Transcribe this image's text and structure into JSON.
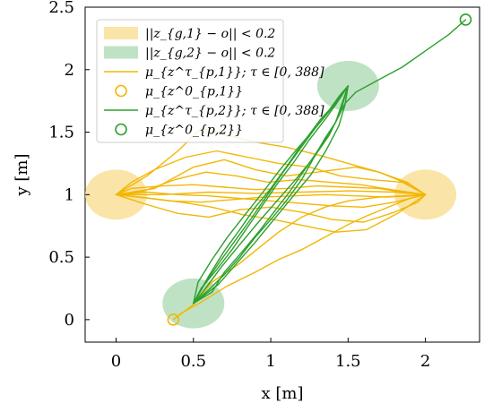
{
  "chart_data": {
    "type": "line",
    "title": "",
    "xlabel": "x [m]",
    "ylabel": "y [m]",
    "xlim": [
      -0.2,
      2.35
    ],
    "ylim": [
      -0.18,
      2.5
    ],
    "xticks": [
      0,
      0.5,
      1,
      1.5,
      2
    ],
    "xtick_labels": [
      "0",
      "0.5",
      "1",
      "1.5",
      "2"
    ],
    "yticks": [
      0,
      0.5,
      1,
      1.5,
      2,
      2.5
    ],
    "ytick_labels": [
      "0",
      "0.5",
      "1",
      "1.5",
      "2",
      "2.5"
    ],
    "grid": false,
    "legend_position": "top-left",
    "regions": [
      {
        "name": "||z_{g,1} − o|| < 0.2",
        "color": "#fbe4a8",
        "centers": [
          [
            0,
            1
          ],
          [
            2,
            1
          ]
        ],
        "radius": 0.2
      },
      {
        "name": "||z_{g,2} − o|| < 0.2",
        "color": "#bfe2c4",
        "centers": [
          [
            0.5,
            0.13
          ],
          [
            1.5,
            1.87
          ]
        ],
        "radius": 0.2
      }
    ],
    "series": [
      {
        "name": "μ_{z^τ_{p,1}}; τ ∈ [0, 388]",
        "color": "#f2b705",
        "start": [
          0.37,
          0
        ],
        "paths": [
          [
            [
              0.37,
              0
            ],
            [
              0.42,
              0.05
            ],
            [
              0.55,
              0.14
            ],
            [
              0.72,
              0.27
            ],
            [
              0.9,
              0.38
            ],
            [
              1.05,
              0.48
            ],
            [
              1.2,
              0.56
            ],
            [
              1.35,
              0.66
            ],
            [
              1.5,
              0.76
            ],
            [
              1.62,
              0.83
            ],
            [
              1.78,
              0.91
            ],
            [
              1.9,
              0.97
            ],
            [
              2,
              1
            ]
          ],
          [
            [
              2,
              1
            ],
            [
              1.85,
              1.02
            ],
            [
              1.7,
              1.05
            ],
            [
              1.5,
              1.06
            ],
            [
              1.3,
              1.07
            ],
            [
              1.1,
              1.05
            ],
            [
              0.9,
              1.04
            ],
            [
              0.7,
              1.06
            ],
            [
              0.5,
              1.08
            ],
            [
              0.3,
              1.07
            ],
            [
              0.1,
              1.05
            ],
            [
              0,
              1
            ]
          ],
          [
            [
              0,
              1
            ],
            [
              0.15,
              0.98
            ],
            [
              0.35,
              0.95
            ],
            [
              0.55,
              0.94
            ],
            [
              0.75,
              0.96
            ],
            [
              0.95,
              0.98
            ],
            [
              1.15,
              0.99
            ],
            [
              1.35,
              1.0
            ],
            [
              1.55,
              0.99
            ],
            [
              1.75,
              0.98
            ],
            [
              1.92,
              0.99
            ],
            [
              2,
              1
            ]
          ],
          [
            [
              2,
              1
            ],
            [
              1.85,
              1.1
            ],
            [
              1.65,
              1.12
            ],
            [
              1.45,
              1.15
            ],
            [
              1.25,
              1.22
            ],
            [
              1.05,
              1.25
            ],
            [
              0.85,
              1.3
            ],
            [
              0.65,
              1.35
            ],
            [
              0.45,
              1.3
            ],
            [
              0.25,
              1.2
            ],
            [
              0.1,
              1.1
            ],
            [
              0,
              1
            ]
          ],
          [
            [
              0,
              1
            ],
            [
              0.2,
              0.92
            ],
            [
              0.4,
              0.85
            ],
            [
              0.6,
              0.82
            ],
            [
              0.8,
              0.88
            ],
            [
              1.0,
              0.9
            ],
            [
              1.2,
              0.86
            ],
            [
              1.4,
              0.8
            ],
            [
              1.6,
              0.78
            ],
            [
              1.8,
              0.86
            ],
            [
              1.95,
              0.94
            ],
            [
              2,
              1
            ]
          ],
          [
            [
              2,
              1
            ],
            [
              1.9,
              1.08
            ],
            [
              1.7,
              1.18
            ],
            [
              1.5,
              1.25
            ],
            [
              1.3,
              1.32
            ],
            [
              1.1,
              1.38
            ],
            [
              0.9,
              1.42
            ],
            [
              0.7,
              1.48
            ],
            [
              0.55,
              1.53
            ],
            [
              0.4,
              1.35
            ],
            [
              0.2,
              1.15
            ],
            [
              0,
              1
            ]
          ],
          [
            [
              0,
              1
            ],
            [
              0.18,
              1.03
            ],
            [
              0.38,
              1.12
            ],
            [
              0.58,
              1.18
            ],
            [
              0.78,
              1.15
            ],
            [
              0.98,
              1.1
            ],
            [
              1.18,
              1.12
            ],
            [
              1.38,
              1.1
            ],
            [
              1.58,
              1.08
            ],
            [
              1.78,
              1.04
            ],
            [
              2,
              1
            ]
          ],
          [
            [
              2,
              1
            ],
            [
              1.8,
              0.94
            ],
            [
              1.6,
              0.9
            ],
            [
              1.4,
              0.91
            ],
            [
              1.2,
              0.93
            ],
            [
              1.0,
              0.95
            ],
            [
              0.8,
              0.97
            ],
            [
              0.6,
              0.99
            ],
            [
              0.4,
              1.0
            ],
            [
              0.2,
              1.02
            ],
            [
              0,
              1
            ]
          ],
          [
            [
              0,
              1
            ],
            [
              0.25,
              1.05
            ],
            [
              0.5,
              1.22
            ],
            [
              0.7,
              1.28
            ],
            [
              0.9,
              1.2
            ],
            [
              1.1,
              1.15
            ],
            [
              1.3,
              1.18
            ],
            [
              1.55,
              1.22
            ],
            [
              1.7,
              1.18
            ],
            [
              1.88,
              1.1
            ],
            [
              2,
              1
            ]
          ],
          [
            [
              2,
              1
            ],
            [
              1.82,
              0.85
            ],
            [
              1.62,
              0.72
            ],
            [
              1.42,
              0.7
            ],
            [
              1.22,
              0.75
            ],
            [
              1.02,
              0.8
            ],
            [
              0.82,
              0.84
            ],
            [
              0.62,
              0.9
            ],
            [
              0.42,
              0.94
            ],
            [
              0.22,
              0.97
            ],
            [
              0,
              1
            ]
          ],
          [
            [
              0,
              1
            ],
            [
              0.3,
              1.0
            ],
            [
              0.6,
              1.02
            ],
            [
              0.9,
              1.01
            ],
            [
              1.2,
              1.02
            ],
            [
              1.5,
              1.03
            ],
            [
              1.8,
              1.02
            ],
            [
              2,
              1
            ]
          ],
          [
            [
              0.37,
              0
            ],
            [
              0.5,
              0.12
            ],
            [
              0.62,
              0.3
            ],
            [
              0.8,
              0.45
            ],
            [
              0.95,
              0.6
            ],
            [
              1.05,
              0.7
            ],
            [
              1.2,
              0.82
            ],
            [
              1.35,
              0.9
            ],
            [
              1.5,
              0.95
            ],
            [
              1.7,
              0.98
            ],
            [
              2,
              1
            ]
          ]
        ]
      },
      {
        "name": "μ_{z^τ_{p,2}}; τ ∈ [0, 388]",
        "color": "#2ca02c",
        "start": [
          2.26,
          2.4
        ],
        "paths": [
          [
            [
              2.26,
              2.4
            ],
            [
              2.15,
              2.28
            ],
            [
              2.0,
              2.15
            ],
            [
              1.85,
              2.02
            ],
            [
              1.7,
              1.92
            ],
            [
              1.55,
              1.82
            ],
            [
              1.48,
              1.73
            ],
            [
              1.42,
              1.58
            ],
            [
              1.35,
              1.45
            ],
            [
              1.28,
              1.3
            ],
            [
              1.2,
              1.12
            ],
            [
              1.1,
              0.95
            ],
            [
              1.0,
              0.8
            ],
            [
              0.9,
              0.66
            ],
            [
              0.8,
              0.5
            ],
            [
              0.7,
              0.36
            ],
            [
              0.6,
              0.24
            ],
            [
              0.5,
              0.13
            ]
          ],
          [
            [
              0.5,
              0.13
            ],
            [
              0.58,
              0.3
            ],
            [
              0.68,
              0.48
            ],
            [
              0.78,
              0.65
            ],
            [
              0.88,
              0.82
            ],
            [
              0.98,
              1.0
            ],
            [
              1.08,
              1.18
            ],
            [
              1.18,
              1.35
            ],
            [
              1.28,
              1.52
            ],
            [
              1.38,
              1.68
            ],
            [
              1.45,
              1.8
            ],
            [
              1.5,
              1.87
            ]
          ],
          [
            [
              1.5,
              1.87
            ],
            [
              1.42,
              1.72
            ],
            [
              1.35,
              1.6
            ],
            [
              1.25,
              1.44
            ],
            [
              1.15,
              1.26
            ],
            [
              1.05,
              1.1
            ],
            [
              0.95,
              0.92
            ],
            [
              0.85,
              0.74
            ],
            [
              0.75,
              0.56
            ],
            [
              0.65,
              0.4
            ],
            [
              0.55,
              0.25
            ],
            [
              0.5,
              0.13
            ]
          ],
          [
            [
              0.5,
              0.13
            ],
            [
              0.62,
              0.22
            ],
            [
              0.7,
              0.38
            ],
            [
              0.82,
              0.55
            ],
            [
              0.92,
              0.7
            ],
            [
              1.02,
              0.86
            ],
            [
              1.12,
              1.02
            ],
            [
              1.22,
              1.2
            ],
            [
              1.32,
              1.38
            ],
            [
              1.42,
              1.58
            ],
            [
              1.5,
              1.87
            ]
          ],
          [
            [
              1.5,
              1.87
            ],
            [
              1.4,
              1.7
            ],
            [
              1.3,
              1.55
            ],
            [
              1.18,
              1.38
            ],
            [
              1.06,
              1.2
            ],
            [
              0.95,
              1.02
            ],
            [
              0.84,
              0.85
            ],
            [
              0.72,
              0.66
            ],
            [
              0.62,
              0.48
            ],
            [
              0.53,
              0.3
            ],
            [
              0.5,
              0.13
            ]
          ],
          [
            [
              0.5,
              0.13
            ],
            [
              0.6,
              0.35
            ],
            [
              0.7,
              0.55
            ],
            [
              0.8,
              0.72
            ],
            [
              0.9,
              0.9
            ],
            [
              1.0,
              1.05
            ],
            [
              1.1,
              1.22
            ],
            [
              1.2,
              1.4
            ],
            [
              1.32,
              1.6
            ],
            [
              1.44,
              1.76
            ],
            [
              1.5,
              1.87
            ]
          ],
          [
            [
              1.5,
              1.87
            ],
            [
              1.45,
              1.66
            ],
            [
              1.38,
              1.48
            ],
            [
              1.28,
              1.3
            ],
            [
              1.16,
              1.12
            ],
            [
              1.04,
              0.95
            ],
            [
              0.92,
              0.78
            ],
            [
              0.8,
              0.6
            ],
            [
              0.68,
              0.42
            ],
            [
              0.56,
              0.22
            ],
            [
              0.5,
              0.13
            ]
          ],
          [
            [
              0.5,
              0.13
            ],
            [
              0.66,
              0.28
            ],
            [
              0.78,
              0.45
            ],
            [
              0.9,
              0.62
            ],
            [
              1.02,
              0.8
            ],
            [
              1.14,
              0.98
            ],
            [
              1.26,
              1.16
            ],
            [
              1.36,
              1.36
            ],
            [
              1.44,
              1.55
            ],
            [
              1.48,
              1.72
            ],
            [
              1.5,
              1.87
            ]
          ]
        ]
      }
    ]
  },
  "legend": {
    "entries": [
      {
        "label": "||z_{g,1} − o|| < 0.2",
        "kind": "patch",
        "color": "#fbe4a8"
      },
      {
        "label": "||z_{g,2} − o|| < 0.2",
        "kind": "patch",
        "color": "#bfe2c4"
      },
      {
        "label": "μ_{z^τ_{p,1}}; τ ∈ [0, 388]",
        "kind": "line",
        "color": "#f2b705"
      },
      {
        "label": "μ_{z^0_{p,1}}",
        "kind": "marker",
        "color": "#f2b705"
      },
      {
        "label": "μ_{z^τ_{p,2}}; τ ∈ [0, 388]",
        "kind": "line",
        "color": "#2ca02c"
      },
      {
        "label": "μ_{z^0_{p,2}}",
        "kind": "marker",
        "color": "#2ca02c"
      }
    ]
  }
}
